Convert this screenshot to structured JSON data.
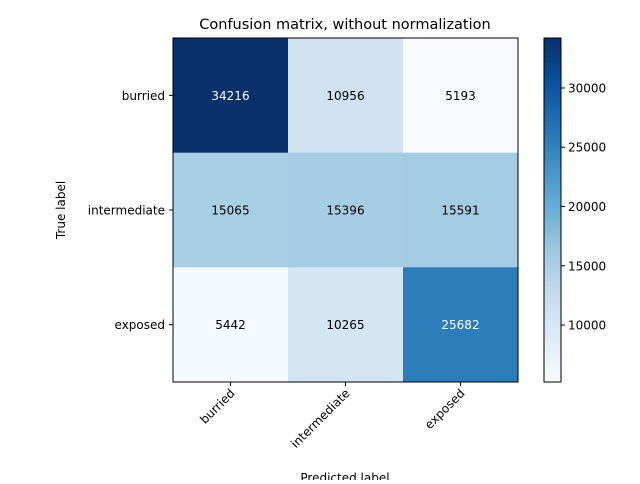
{
  "chart_data": {
    "type": "heatmap",
    "title": "Confusion matrix, without normalization",
    "xlabel": "Predicted label",
    "ylabel": "True label",
    "x_categories": [
      "burried",
      "intermediate",
      "exposed"
    ],
    "y_categories": [
      "burried",
      "intermediate",
      "exposed"
    ],
    "values": [
      [
        34216,
        10956,
        5193
      ],
      [
        15065,
        15396,
        15591
      ],
      [
        5442,
        10265,
        25682
      ]
    ],
    "colormap": "Blues",
    "color_range": [
      5193,
      34216
    ],
    "colorbar_ticks": [
      10000,
      15000,
      20000,
      25000,
      30000
    ],
    "colorbar_tick_labels": [
      "10000",
      "15000",
      "20000",
      "25000",
      "30000"
    ],
    "x_tick_rotation_deg": 45,
    "text_colors": {
      "dark_cell": "#ffffff",
      "light_cell": "#000000"
    }
  }
}
